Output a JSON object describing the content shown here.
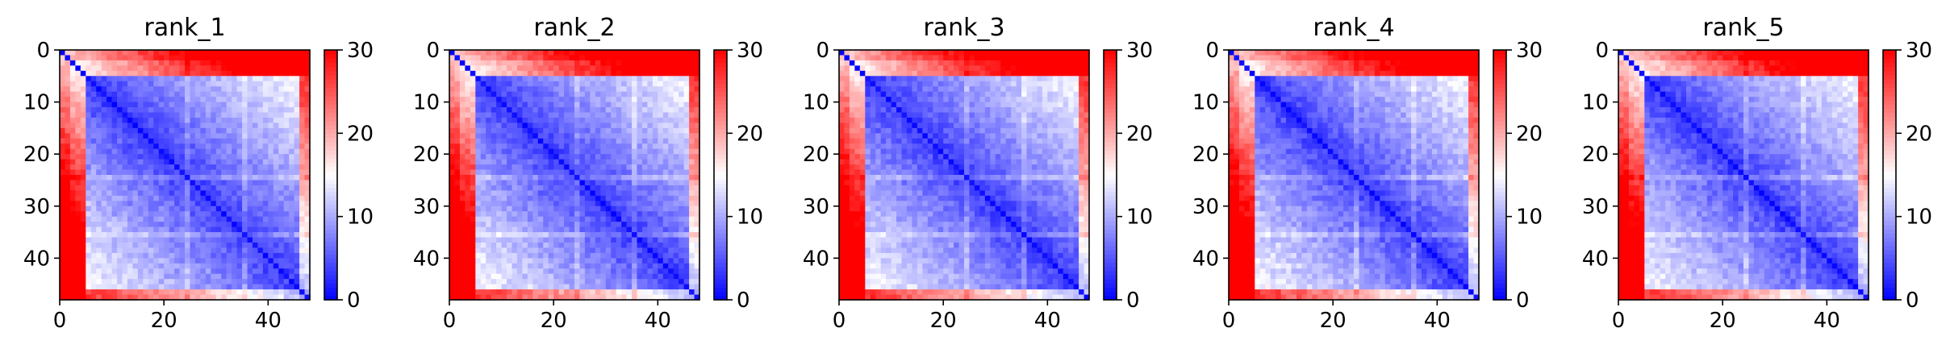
{
  "chart_data": [
    {
      "type": "heatmap",
      "title": "rank_1",
      "x_ticks": [
        "0",
        "20",
        "40"
      ],
      "y_ticks": [
        "0",
        "10",
        "20",
        "30",
        "40"
      ],
      "colorbar_ticks": [
        "0",
        "10",
        "20",
        "30"
      ],
      "size": 48,
      "xlim": [
        0,
        48
      ],
      "ylim": [
        48,
        0
      ],
      "colorbar_range": [
        0,
        30
      ],
      "colormap": "bwr",
      "seed": 11
    },
    {
      "type": "heatmap",
      "title": "rank_2",
      "x_ticks": [
        "0",
        "20",
        "40"
      ],
      "y_ticks": [
        "0",
        "10",
        "20",
        "30",
        "40"
      ],
      "colorbar_ticks": [
        "0",
        "10",
        "20",
        "30"
      ],
      "size": 48,
      "xlim": [
        0,
        48
      ],
      "ylim": [
        48,
        0
      ],
      "colorbar_range": [
        0,
        30
      ],
      "colormap": "bwr",
      "seed": 23
    },
    {
      "type": "heatmap",
      "title": "rank_3",
      "x_ticks": [
        "0",
        "20",
        "40"
      ],
      "y_ticks": [
        "0",
        "10",
        "20",
        "30",
        "40"
      ],
      "colorbar_ticks": [
        "0",
        "10",
        "20",
        "30"
      ],
      "size": 48,
      "xlim": [
        0,
        48
      ],
      "ylim": [
        48,
        0
      ],
      "colorbar_range": [
        0,
        30
      ],
      "colormap": "bwr",
      "seed": 37
    },
    {
      "type": "heatmap",
      "title": "rank_4",
      "x_ticks": [
        "0",
        "20",
        "40"
      ],
      "y_ticks": [
        "0",
        "10",
        "20",
        "30",
        "40"
      ],
      "colorbar_ticks": [
        "0",
        "10",
        "20",
        "30"
      ],
      "size": 48,
      "xlim": [
        0,
        48
      ],
      "ylim": [
        48,
        0
      ],
      "colorbar_range": [
        0,
        30
      ],
      "colormap": "bwr",
      "seed": 41
    },
    {
      "type": "heatmap",
      "title": "rank_5",
      "x_ticks": [
        "0",
        "20",
        "40"
      ],
      "y_ticks": [
        "0",
        "10",
        "20",
        "30",
        "40"
      ],
      "colorbar_ticks": [
        "0",
        "10",
        "20",
        "30"
      ],
      "size": 48,
      "xlim": [
        0,
        48
      ],
      "ylim": [
        48,
        0
      ],
      "colorbar_range": [
        0,
        30
      ],
      "colormap": "bwr",
      "seed": 53
    }
  ]
}
